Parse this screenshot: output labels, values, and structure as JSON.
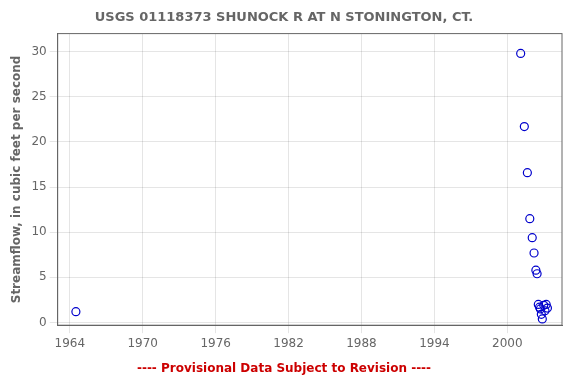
{
  "chart_data": {
    "type": "scatter",
    "title": "USGS 01118373 SHUNOCK R AT N STONINGTON, CT.",
    "ylabel": "Streamflow, in cubic feet per second",
    "x": [
      1964.5,
      2001.1,
      2001.4,
      2001.65,
      2001.85,
      2002.05,
      2002.2,
      2002.35,
      2002.45,
      2002.55,
      2002.65,
      2002.72,
      2002.8,
      2002.88,
      2003.0,
      2003.1,
      2003.2,
      2003.3
    ],
    "values": [
      1.2,
      29.8,
      21.7,
      16.6,
      11.5,
      9.4,
      7.7,
      5.8,
      5.4,
      2.0,
      1.7,
      1.5,
      0.9,
      0.4,
      1.9,
      1.3,
      2.0,
      1.6
    ],
    "color": "#0000cc",
    "marker": "circle-open",
    "xlim": [
      1963,
      2004.5
    ],
    "ylim": [
      -0.3,
      32
    ],
    "xticks": [
      1964,
      1970,
      1976,
      1982,
      1988,
      1994,
      2000
    ],
    "yticks": [
      0,
      5,
      10,
      15,
      20,
      25,
      30
    ],
    "grid": true,
    "annotations": [
      {
        "text": "---- Provisional Data Subject to Revision ----",
        "color": "#cc0000"
      }
    ]
  }
}
